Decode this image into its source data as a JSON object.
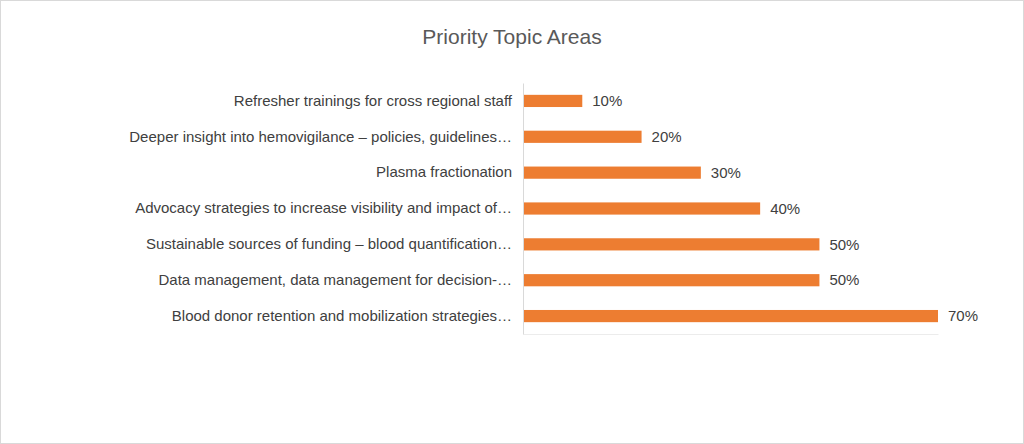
{
  "chart_data": {
    "type": "bar",
    "title": "Priority Topic Areas",
    "orientation": "horizontal",
    "categories": [
      "Refresher trainings for cross regional staff",
      "Deeper insight into hemovigilance – policies, guidelines…",
      "Plasma fractionation",
      "Advocacy strategies to increase visibility and impact of…",
      "Sustainable sources of funding – blood quantification…",
      "Data management, data management for decision-…",
      "Blood donor retention and mobilization strategies…"
    ],
    "values": [
      10,
      20,
      30,
      40,
      50,
      50,
      70
    ],
    "value_labels": [
      "10%",
      "20%",
      "30%",
      "40%",
      "50%",
      "50%",
      "70%"
    ],
    "color": "#ed7d31",
    "xlim": [
      0,
      70
    ],
    "grid": false,
    "data_labels": true,
    "tick_labels": "y"
  }
}
